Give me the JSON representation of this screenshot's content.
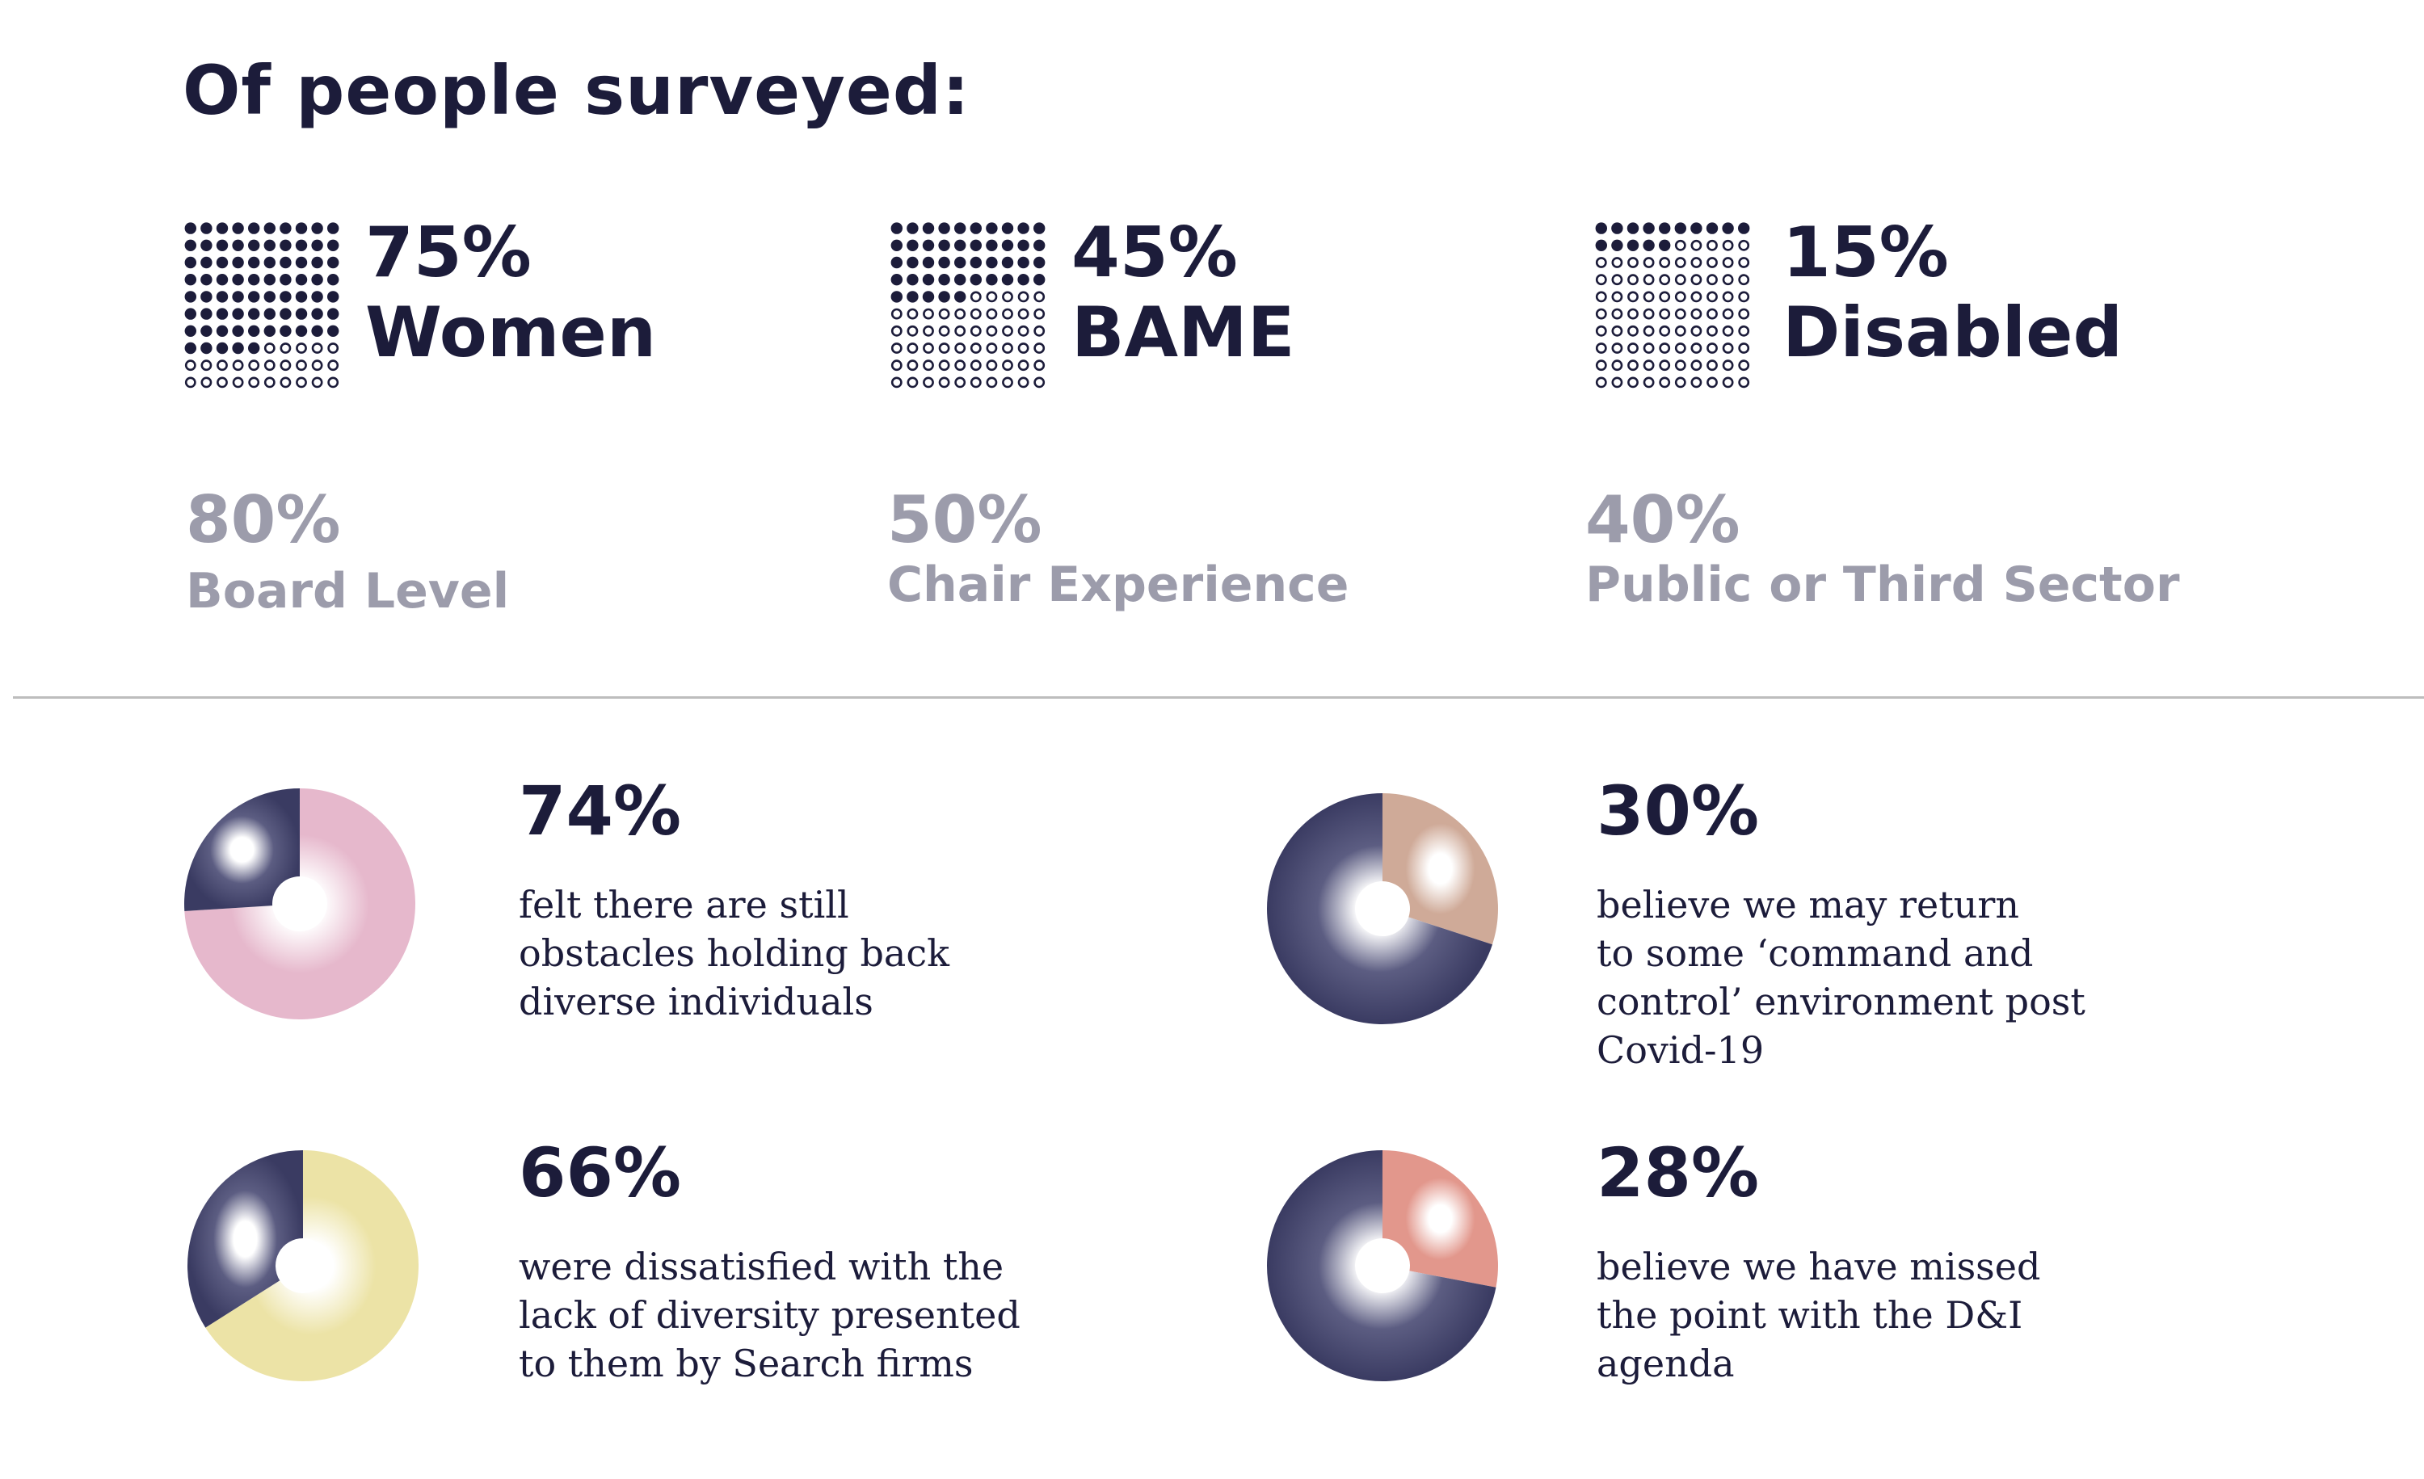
{
  "title": "Of people surveyed:",
  "colors": {
    "navy": "#1c1c3a",
    "grey": "#9c9cab",
    "divider": "#bdbdbd"
  },
  "chart_data": [
    {
      "type": "waffle",
      "grid": [
        10,
        10
      ],
      "stats": [
        {
          "value": 75,
          "pct_label": "75%",
          "label": "Women"
        },
        {
          "value": 45,
          "pct_label": "45%",
          "label": "BAME"
        },
        {
          "value": 15,
          "pct_label": "15%",
          "label": "Disabled"
        }
      ]
    },
    {
      "type": "table",
      "stats": [
        {
          "value": 80,
          "pct_label": "80%",
          "label": "Board Level"
        },
        {
          "value": 50,
          "pct_label": "50%",
          "label": "Chair Experience"
        },
        {
          "value": 40,
          "pct_label": "40%",
          "label": "Public or Third Sector"
        }
      ]
    },
    {
      "type": "pie",
      "donuts": [
        {
          "value": 74,
          "pct_label": "74%",
          "color": "#e6b8cc",
          "text": "felt there are still\nobstacles holding back\ndiverse individuals"
        },
        {
          "value": 30,
          "pct_label": "30%",
          "color": "#cfaa98",
          "text": "believe we may return\nto some ‘command and\ncontrol’ environment post\nCovid-19"
        },
        {
          "value": 66,
          "pct_label": "66%",
          "color": "#ece3a6",
          "text": "were dissatisfied with the\nlack of diversity presented\nto them by Search firms"
        },
        {
          "value": 28,
          "pct_label": "28%",
          "color": "#e2978c",
          "text": "believe we have missed\nthe point with the D&I\nagenda"
        }
      ]
    }
  ]
}
